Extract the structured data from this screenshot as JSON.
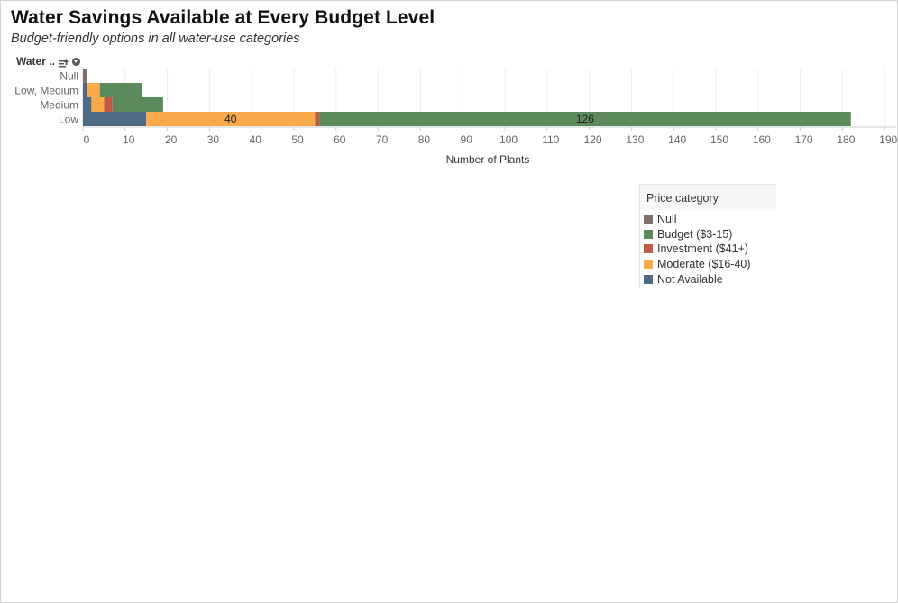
{
  "header": {
    "title": "Water Savings Available at Every Budget Level",
    "subtitle": "Budget-friendly options in all water-use categories",
    "row_field_label": "Water .."
  },
  "legend": {
    "title": "Price category",
    "items": [
      {
        "label": "Null",
        "color": "#7f7069"
      },
      {
        "label": "Budget ($3-15)",
        "color": "#5c8a5c"
      },
      {
        "label": "Investment ($41+)",
        "color": "#c25a4a"
      },
      {
        "label": "Moderate ($16-40)",
        "color": "#fbaa4b"
      },
      {
        "label": "Not Available",
        "color": "#4e6a85"
      }
    ]
  },
  "chart_data": {
    "type": "bar",
    "orientation": "horizontal",
    "stacked": true,
    "title": "Water Savings Available at Every Budget Level",
    "subtitle": "Budget-friendly options in all water-use categories",
    "xlabel": "Number of Plants",
    "ylabel": "Water ..",
    "xlim": [
      0,
      190
    ],
    "x_ticks": [
      0,
      10,
      20,
      30,
      40,
      50,
      60,
      70,
      80,
      90,
      100,
      110,
      120,
      130,
      140,
      150,
      160,
      170,
      180,
      190
    ],
    "categories": [
      "Null",
      "Low, Medium",
      "Medium",
      "Low"
    ],
    "series": [
      {
        "name": "Not Available",
        "color": "#4e6a85",
        "values": [
          0,
          1,
          2,
          15
        ]
      },
      {
        "name": "Moderate ($16-40)",
        "color": "#fbaa4b",
        "values": [
          0,
          3,
          3,
          40
        ]
      },
      {
        "name": "Investment ($41+)",
        "color": "#c25a4a",
        "values": [
          0,
          0,
          2,
          1
        ]
      },
      {
        "name": "Budget ($3-15)",
        "color": "#5c8a5c",
        "values": [
          0,
          10,
          12,
          126
        ]
      },
      {
        "name": "Null",
        "color": "#7f7069",
        "values": [
          1,
          0,
          0,
          0
        ]
      }
    ],
    "data_labels": [
      {
        "category": "Low",
        "series": "Moderate ($16-40)",
        "text": "40"
      },
      {
        "category": "Low",
        "series": "Budget ($3-15)",
        "text": "126"
      }
    ],
    "grid": "vertical",
    "legend_position": "right"
  }
}
